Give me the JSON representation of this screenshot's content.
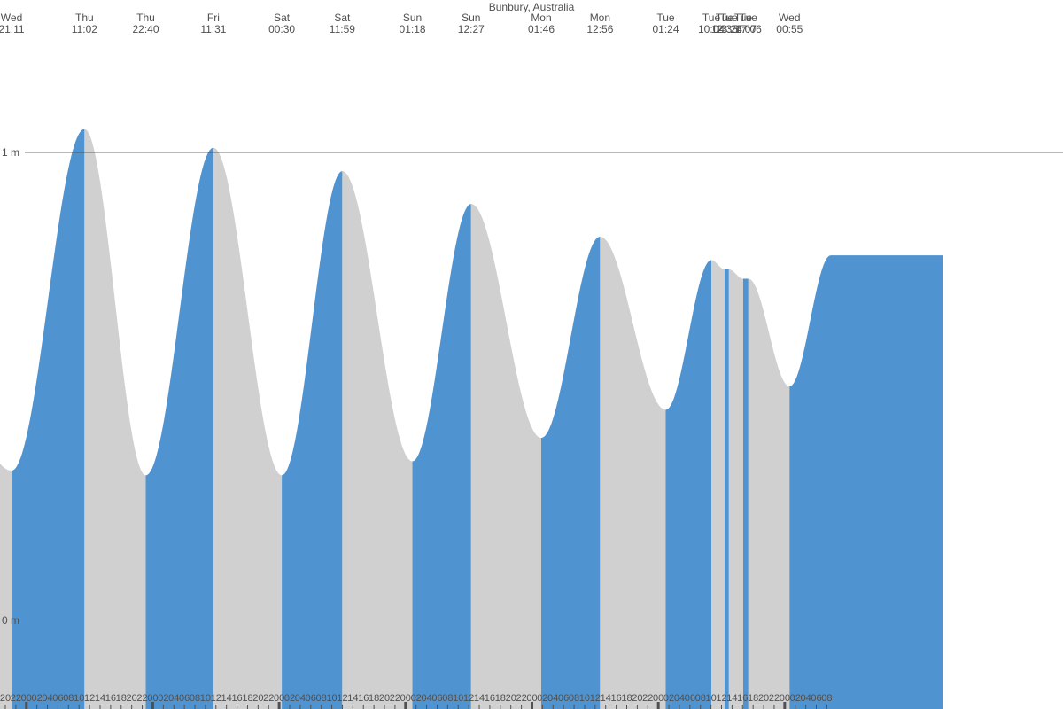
{
  "colors": {
    "rising": "#4f93d0",
    "falling": "#d0d0d0",
    "text": "#505050",
    "gridline": "#404040"
  },
  "chart_data": {
    "type": "area",
    "title": "Bunbury, Australia",
    "y_unit": "m",
    "yticks": [
      {
        "value": 0,
        "label": "0 m"
      },
      {
        "value": 1,
        "label": "1 m"
      }
    ],
    "ylim": [
      -0.17,
      1.34
    ],
    "xlim_hours": [
      -28,
      174
    ],
    "x_origin": "Thu 00:00",
    "fill_rule": "rising tide blue, falling tide grey",
    "extremes": [
      {
        "day": "Wed",
        "time": "21:11",
        "height": 0.32,
        "type": "low"
      },
      {
        "day": "Thu",
        "time": "11:02",
        "height": 1.05,
        "type": "high"
      },
      {
        "day": "Thu",
        "time": "22:40",
        "height": 0.31,
        "type": "low"
      },
      {
        "day": "Fri",
        "time": "11:31",
        "height": 1.01,
        "type": "high"
      },
      {
        "day": "Sat",
        "time": "00:30",
        "height": 0.31,
        "type": "low"
      },
      {
        "day": "Sat",
        "time": "11:59",
        "height": 0.96,
        "type": "high"
      },
      {
        "day": "Sun",
        "time": "01:18",
        "height": 0.34,
        "type": "low"
      },
      {
        "day": "Sun",
        "time": "12:27",
        "height": 0.89,
        "type": "high"
      },
      {
        "day": "Mon",
        "time": "01:46",
        "height": 0.39,
        "type": "low"
      },
      {
        "day": "Mon",
        "time": "12:56",
        "height": 0.82,
        "type": "high"
      },
      {
        "day": "Tue",
        "time": "01:24",
        "height": 0.45,
        "type": "low"
      },
      {
        "day": "Tue",
        "time": "10:04",
        "height": 0.77,
        "type": "high"
      },
      {
        "day": "Tue",
        "time": "12:35",
        "height": 0.75,
        "type": "low"
      },
      {
        "day": "Tue",
        "time": "13:24",
        "height": 0.75,
        "type": "high"
      },
      {
        "day": "Tue",
        "time": "16:07",
        "height": 0.73,
        "type": "low"
      },
      {
        "day": "Tue",
        "time": "17:06",
        "height": 0.73,
        "type": "high"
      },
      {
        "day": "Wed",
        "time": "00:55",
        "height": 0.5,
        "type": "low"
      }
    ],
    "hour_labels": [
      "20",
      "22",
      "00",
      "02",
      "04",
      "06",
      "08",
      "10",
      "12",
      "14",
      "16",
      "18",
      "20",
      "22",
      "00",
      "02",
      "04",
      "06",
      "08",
      "10",
      "12",
      "14",
      "16",
      "18",
      "20",
      "22",
      "00",
      "02",
      "04",
      "06",
      "08",
      "10",
      "12",
      "14",
      "16",
      "18",
      "20",
      "22",
      "00",
      "02",
      "04",
      "06",
      "08",
      "10",
      "12",
      "14",
      "16",
      "18",
      "20",
      "22",
      "00",
      "02",
      "04",
      "06",
      "08",
      "10",
      "12",
      "14",
      "16",
      "18",
      "20",
      "22",
      "00",
      "02",
      "04",
      "06",
      "08",
      "10",
      "12",
      "14",
      "16",
      "18",
      "20",
      "22",
      "00",
      "02",
      "04",
      "06",
      "08",
      "10",
      "12",
      "14",
      "16",
      "18",
      "20",
      "22",
      "00",
      "02",
      "04",
      "06",
      "08"
    ]
  }
}
